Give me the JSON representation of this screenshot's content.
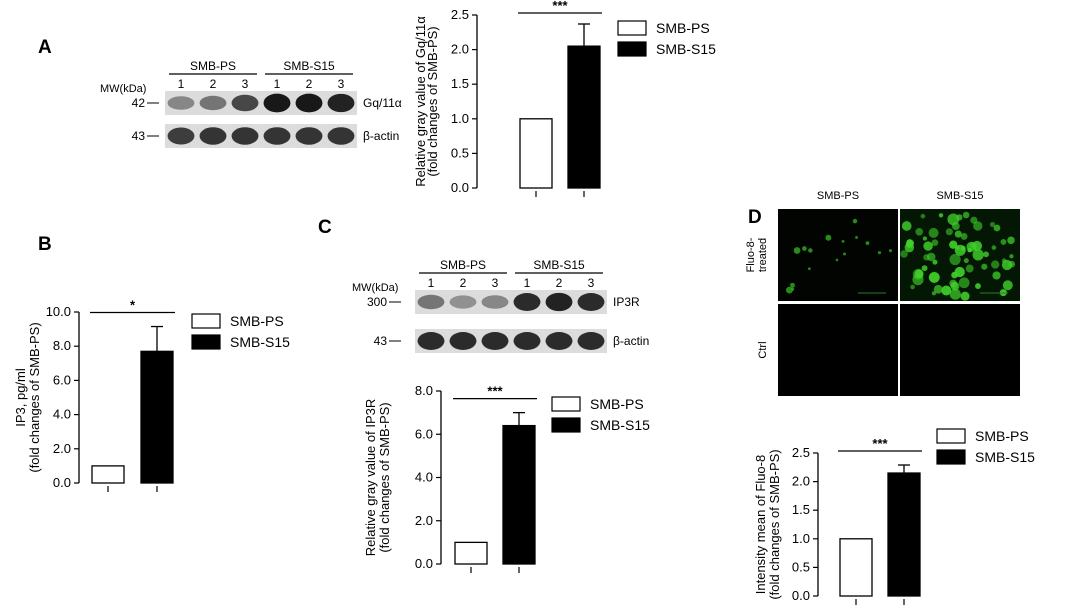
{
  "panels": {
    "A": {
      "letter": "A",
      "blot": {
        "mw_label": "MW(kDa)",
        "group1": "SMB-PS",
        "group2": "SMB-S15",
        "lanes": [
          "1",
          "2",
          "3",
          "1",
          "2",
          "3"
        ],
        "rows": [
          {
            "mw": "42",
            "protein": "Gq/11α",
            "intensities": [
              0.35,
              0.45,
              0.7,
              0.95,
              0.95,
              0.9
            ]
          },
          {
            "mw": "43",
            "protein": "β-actin",
            "intensities": [
              0.75,
              0.8,
              0.8,
              0.8,
              0.8,
              0.8
            ]
          }
        ]
      }
    },
    "B": {
      "letter": "B"
    },
    "C": {
      "letter": "C",
      "blot": {
        "mw_label": "MW(kDa)",
        "group1": "SMB-PS",
        "group2": "SMB-S15",
        "lanes": [
          "1",
          "2",
          "3",
          "1",
          "2",
          "3"
        ],
        "rows": [
          {
            "mw": "300",
            "protein": "IP3R",
            "intensities": [
              0.45,
              0.3,
              0.35,
              0.85,
              0.9,
              0.85
            ]
          },
          {
            "mw": "43",
            "protein": "β-actin",
            "intensities": [
              0.85,
              0.85,
              0.85,
              0.85,
              0.85,
              0.85
            ]
          }
        ]
      }
    },
    "D": {
      "letter": "D",
      "images": {
        "col1": "SMB-PS",
        "col2": "SMB-S15",
        "row1": "Fluo-8-\ntreated",
        "row2": "Ctrl"
      }
    }
  },
  "chart_data": [
    {
      "type": "bar",
      "panel": "A",
      "categories": [
        "SMB-PS",
        "SMB-S15"
      ],
      "values": [
        1.0,
        2.05
      ],
      "errors": [
        0,
        0.32
      ],
      "fills": [
        "#ffffff",
        "#000000"
      ],
      "ylabel": "Relative gray value of Gq/11α\n(fold changes of SMB-PS)",
      "ylim": [
        0,
        2.5
      ],
      "yticks": [
        "0.0",
        "0.5",
        "1.0",
        "1.5",
        "2.0",
        "2.5"
      ],
      "significance": "***",
      "legend": [
        "SMB-PS",
        "SMB-S15"
      ],
      "legend_position": "right"
    },
    {
      "type": "bar",
      "panel": "B",
      "categories": [
        "SMB-PS",
        "SMB-S15"
      ],
      "values": [
        1.0,
        7.7
      ],
      "errors": [
        0,
        1.45
      ],
      "fills": [
        "#ffffff",
        "#000000"
      ],
      "ylabel": "IP3, pg/ml\n(fold changes of SMB-PS)",
      "ylim": [
        0,
        10
      ],
      "yticks": [
        "0.0",
        "2.0",
        "4.0",
        "6.0",
        "8.0",
        "10.0"
      ],
      "significance": "*",
      "legend": [
        "SMB-PS",
        "SMB-S15"
      ],
      "legend_position": "right"
    },
    {
      "type": "bar",
      "panel": "C",
      "categories": [
        "SMB-PS",
        "SMB-S15"
      ],
      "values": [
        1.0,
        6.4
      ],
      "errors": [
        0,
        0.6
      ],
      "fills": [
        "#ffffff",
        "#000000"
      ],
      "ylabel": "Relative gray value of IP3R\n(fold changes of SMB-PS)",
      "ylim": [
        0,
        8
      ],
      "yticks": [
        "0.0",
        "2.0",
        "4.0",
        "6.0",
        "8.0"
      ],
      "significance": "***",
      "legend": [
        "SMB-PS",
        "SMB-S15"
      ],
      "legend_position": "right"
    },
    {
      "type": "bar",
      "panel": "D",
      "categories": [
        "SMB-PS",
        "SMB-S15"
      ],
      "values": [
        1.0,
        2.15
      ],
      "errors": [
        0,
        0.14
      ],
      "fills": [
        "#ffffff",
        "#000000"
      ],
      "ylabel": "Intensity mean of Fluo-8\n(fold changes of SMB-PS)",
      "ylim": [
        0,
        2.5
      ],
      "yticks": [
        "0.0",
        "0.5",
        "1.0",
        "1.5",
        "2.0",
        "2.5"
      ],
      "significance": "***",
      "legend": [
        "SMB-PS",
        "SMB-S15"
      ],
      "legend_position": "right"
    }
  ]
}
